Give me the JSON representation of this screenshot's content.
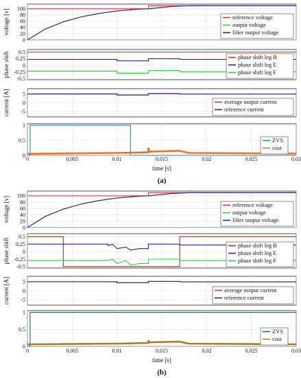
{
  "figures": [
    {
      "caption": "(a)",
      "xlabel": "time [s]",
      "x_ticks": [
        "0",
        "0.005",
        "0.01",
        "0.015",
        "0.02",
        "0.025",
        "0.03"
      ],
      "panels": [
        {
          "ylabel": "voltage [v]",
          "y_ticks": [
            "0",
            "20",
            "40",
            "60",
            "80",
            "100"
          ],
          "legend": [
            "reference voltage",
            "output voltage",
            "filter output voltage"
          ]
        },
        {
          "ylabel": "phase shift",
          "y_ticks": [
            "0.5",
            "0.25",
            "0",
            "-0.25",
            "-0.5"
          ],
          "legend": [
            "phase shift leg B",
            "phase shift leg E",
            "phase shift leg F"
          ]
        },
        {
          "ylabel": "current [A]",
          "y_ticks": [
            "5",
            "0",
            "-5"
          ],
          "legend": [
            "average output current",
            "reference current"
          ]
        },
        {
          "ylabel": "",
          "y_ticks": [
            "0",
            "0.5",
            "1"
          ],
          "legend": [
            "ZVS",
            "cost"
          ]
        }
      ]
    },
    {
      "caption": "(b)",
      "xlabel": "time [s]",
      "x_ticks": [
        "0",
        "0.005",
        "0.01",
        "0.015",
        "0.02",
        "0.025",
        "0.03"
      ],
      "panels": [
        {
          "ylabel": "voltage [v]",
          "y_ticks": [
            "0",
            "20",
            "40",
            "60",
            "80",
            "100"
          ],
          "legend": [
            "reference voltage",
            "output voltage",
            "filter output voltage"
          ]
        },
        {
          "ylabel": "phase shift",
          "y_ticks": [
            "0.5",
            "0.25",
            "0",
            "-0.25",
            "-0.5"
          ],
          "legend": [
            "phase shift leg B",
            "phase shift leg E",
            "phase shift leg F"
          ]
        },
        {
          "ylabel": "current [A]",
          "y_ticks": [
            "5",
            "0",
            "-5"
          ],
          "legend": [
            "average output current",
            "reference current"
          ]
        },
        {
          "ylabel": "",
          "y_ticks": [
            "0",
            "0.5",
            "1"
          ],
          "legend": [
            "ZVS",
            "cost"
          ]
        }
      ]
    }
  ],
  "colors": {
    "reference": "#e0303a",
    "output": "#2ecc40",
    "filter": "#2a1e9c",
    "legE": "#2a1e9c",
    "legB_b": "#8b3a1a",
    "zvs": "#1a8fb0",
    "zvs_b": "#1a5fb0",
    "cost": "#f07020",
    "cost_b": "#b07a20"
  },
  "chart_data": [
    {
      "type": "line",
      "x_range": [
        0,
        0.03
      ],
      "panels": [
        {
          "ylim": [
            0,
            115
          ],
          "series": [
            {
              "name": "reference voltage",
              "points": [
                [
                  0,
                  100
                ],
                [
                  0.0135,
                  100
                ],
                [
                  0.0135,
                  110
                ],
                [
                  0.03,
                  110
                ]
              ]
            },
            {
              "name": "output voltage",
              "points": [
                [
                  0,
                  0
                ],
                [
                  0.002,
                  35
                ],
                [
                  0.004,
                  58
                ],
                [
                  0.006,
                  74
                ],
                [
                  0.008,
                  85
                ],
                [
                  0.01,
                  93
                ],
                [
                  0.0125,
                  99
                ],
                [
                  0.0135,
                  100
                ],
                [
                  0.016,
                  107
                ],
                [
                  0.018,
                  110
                ],
                [
                  0.03,
                  110
                ]
              ]
            },
            {
              "name": "filter output voltage",
              "points": [
                [
                  0,
                  0
                ],
                [
                  0.002,
                  35
                ],
                [
                  0.004,
                  58
                ],
                [
                  0.006,
                  74
                ],
                [
                  0.008,
                  85
                ],
                [
                  0.01,
                  93
                ],
                [
                  0.0125,
                  99
                ],
                [
                  0.0135,
                  100
                ],
                [
                  0.016,
                  107
                ],
                [
                  0.018,
                  110
                ],
                [
                  0.03,
                  110
                ]
              ]
            }
          ]
        },
        {
          "ylim": [
            -0.55,
            0.6
          ],
          "series": [
            {
              "name": "phase shift leg B",
              "points": [
                [
                  0,
                  0.5
                ],
                [
                  0.03,
                  0.5
                ]
              ]
            },
            {
              "name": "phase shift leg E",
              "points": [
                [
                  0,
                  0.22
                ],
                [
                  0.01,
                  0.22
                ],
                [
                  0.01,
                  0.17
                ],
                [
                  0.0135,
                  0.17
                ],
                [
                  0.0135,
                  0.25
                ],
                [
                  0.017,
                  0.25
                ],
                [
                  0.017,
                  0.22
                ],
                [
                  0.03,
                  0.22
                ]
              ]
            },
            {
              "name": "phase shift leg F",
              "points": [
                [
                  0,
                  -0.22
                ],
                [
                  0.01,
                  -0.22
                ],
                [
                  0.01,
                  -0.3
                ],
                [
                  0.0135,
                  -0.3
                ],
                [
                  0.0135,
                  -0.2
                ],
                [
                  0.017,
                  -0.2
                ],
                [
                  0.017,
                  -0.25
                ],
                [
                  0.03,
                  -0.25
                ]
              ]
            }
          ]
        },
        {
          "ylim": [
            -8,
            8
          ],
          "series": [
            {
              "name": "average output current",
              "points": [
                [
                  0,
                  5
                ],
                [
                  0.01,
                  5
                ],
                [
                  0.01,
                  4.4
                ],
                [
                  0.0135,
                  4.4
                ],
                [
                  0.0135,
                  5.2
                ],
                [
                  0.017,
                  5.2
                ],
                [
                  0.017,
                  4.9
                ],
                [
                  0.03,
                  4.9
                ]
              ]
            },
            {
              "name": "reference current",
              "points": [
                [
                  0,
                  5
                ],
                [
                  0.01,
                  5
                ],
                [
                  0.01,
                  4.4
                ],
                [
                  0.0135,
                  4.4
                ],
                [
                  0.0135,
                  5.2
                ],
                [
                  0.017,
                  5.2
                ],
                [
                  0.017,
                  4.9
                ],
                [
                  0.03,
                  4.9
                ]
              ]
            }
          ]
        },
        {
          "ylim": [
            0,
            1.05
          ],
          "series": [
            {
              "name": "ZVS",
              "points": [
                [
                  0,
                  0
                ],
                [
                  0.0003,
                  0
                ],
                [
                  0.0003,
                  1
                ],
                [
                  0.0115,
                  1
                ],
                [
                  0.0115,
                  0
                ],
                [
                  0.03,
                  0
                ]
              ]
            },
            {
              "name": "cost",
              "points": [
                [
                  0,
                  0.05
                ],
                [
                  0.01,
                  0.08
                ],
                [
                  0.0135,
                  0.1
                ],
                [
                  0.0135,
                  0.25
                ],
                [
                  0.0136,
                  0.12
                ],
                [
                  0.017,
                  0.15
                ],
                [
                  0.018,
                  0.08
                ],
                [
                  0.03,
                  0.06
                ]
              ]
            }
          ]
        }
      ]
    },
    {
      "type": "line",
      "x_range": [
        0,
        0.03
      ],
      "panels": [
        {
          "ylim": [
            0,
            115
          ],
          "series": [
            {
              "name": "reference voltage",
              "points": [
                [
                  0,
                  100
                ],
                [
                  0.0135,
                  100
                ],
                [
                  0.0135,
                  110
                ],
                [
                  0.03,
                  110
                ]
              ]
            },
            {
              "name": "output voltage",
              "points": [
                [
                  0,
                  0
                ],
                [
                  0.002,
                  35
                ],
                [
                  0.004,
                  58
                ],
                [
                  0.006,
                  74
                ],
                [
                  0.008,
                  85
                ],
                [
                  0.01,
                  93
                ],
                [
                  0.0125,
                  99
                ],
                [
                  0.0135,
                  100
                ],
                [
                  0.016,
                  107
                ],
                [
                  0.018,
                  110
                ],
                [
                  0.03,
                  110
                ]
              ]
            },
            {
              "name": "filter output voltage",
              "points": [
                [
                  0,
                  0
                ],
                [
                  0.002,
                  35
                ],
                [
                  0.004,
                  58
                ],
                [
                  0.006,
                  74
                ],
                [
                  0.008,
                  85
                ],
                [
                  0.01,
                  93
                ],
                [
                  0.0125,
                  99
                ],
                [
                  0.0135,
                  100
                ],
                [
                  0.016,
                  107
                ],
                [
                  0.018,
                  110
                ],
                [
                  0.03,
                  110
                ]
              ]
            }
          ]
        },
        {
          "ylim": [
            -0.55,
            0.6
          ],
          "series": [
            {
              "name": "phase shift leg B",
              "points": [
                [
                  0,
                  0.5
                ],
                [
                  0.004,
                  0.5
                ],
                [
                  0.004,
                  -0.5
                ],
                [
                  0.017,
                  -0.5
                ],
                [
                  0.017,
                  0.5
                ],
                [
                  0.03,
                  0.5
                ]
              ]
            },
            {
              "name": "phase shift leg E",
              "points": [
                [
                  0,
                  0.25
                ],
                [
                  0.009,
                  0.25
                ],
                [
                  0.009,
                  0.2
                ],
                [
                  0.0095,
                  0.25
                ],
                [
                  0.01,
                  0.1
                ],
                [
                  0.011,
                  0.15
                ],
                [
                  0.0115,
                  0.05
                ],
                [
                  0.0125,
                  0.1
                ],
                [
                  0.0135,
                  0.1
                ],
                [
                  0.0135,
                  0.25
                ],
                [
                  0.017,
                  0.25
                ],
                [
                  0.017,
                  0.22
                ],
                [
                  0.03,
                  0.22
                ]
              ]
            },
            {
              "name": "phase shift leg F",
              "points": [
                [
                  0,
                  -0.3
                ],
                [
                  0.009,
                  -0.3
                ],
                [
                  0.0095,
                  -0.25
                ],
                [
                  0.01,
                  -0.4
                ],
                [
                  0.011,
                  -0.3
                ],
                [
                  0.0115,
                  -0.45
                ],
                [
                  0.0125,
                  -0.4
                ],
                [
                  0.0135,
                  -0.4
                ],
                [
                  0.0135,
                  -0.25
                ],
                [
                  0.017,
                  -0.25
                ],
                [
                  0.017,
                  -0.3
                ],
                [
                  0.03,
                  -0.3
                ]
              ]
            }
          ]
        },
        {
          "ylim": [
            -8,
            8
          ],
          "series": [
            {
              "name": "average output current",
              "points": [
                [
                  0,
                  5
                ],
                [
                  0.01,
                  5
                ],
                [
                  0.01,
                  4.4
                ],
                [
                  0.0135,
                  4.4
                ],
                [
                  0.0135,
                  5.2
                ],
                [
                  0.017,
                  5.2
                ],
                [
                  0.017,
                  4.9
                ],
                [
                  0.03,
                  4.9
                ]
              ]
            },
            {
              "name": "reference current",
              "points": [
                [
                  0,
                  5
                ],
                [
                  0.01,
                  5
                ],
                [
                  0.01,
                  4.4
                ],
                [
                  0.0135,
                  4.4
                ],
                [
                  0.0135,
                  5.2
                ],
                [
                  0.017,
                  5.2
                ],
                [
                  0.017,
                  4.9
                ],
                [
                  0.03,
                  4.9
                ]
              ]
            }
          ]
        },
        {
          "ylim": [
            0,
            1.05
          ],
          "series": [
            {
              "name": "ZVS",
              "points": [
                [
                  0,
                  0
                ],
                [
                  0.0003,
                  0
                ],
                [
                  0.0003,
                  1
                ],
                [
                  0.03,
                  1
                ]
              ]
            },
            {
              "name": "cost",
              "points": [
                [
                  0,
                  0.06
                ],
                [
                  0.01,
                  0.08
                ],
                [
                  0.0135,
                  0.1
                ],
                [
                  0.0135,
                  0.18
                ],
                [
                  0.0136,
                  0.12
                ],
                [
                  0.017,
                  0.14
                ],
                [
                  0.018,
                  0.08
                ],
                [
                  0.03,
                  0.06
                ]
              ]
            }
          ]
        }
      ]
    }
  ]
}
